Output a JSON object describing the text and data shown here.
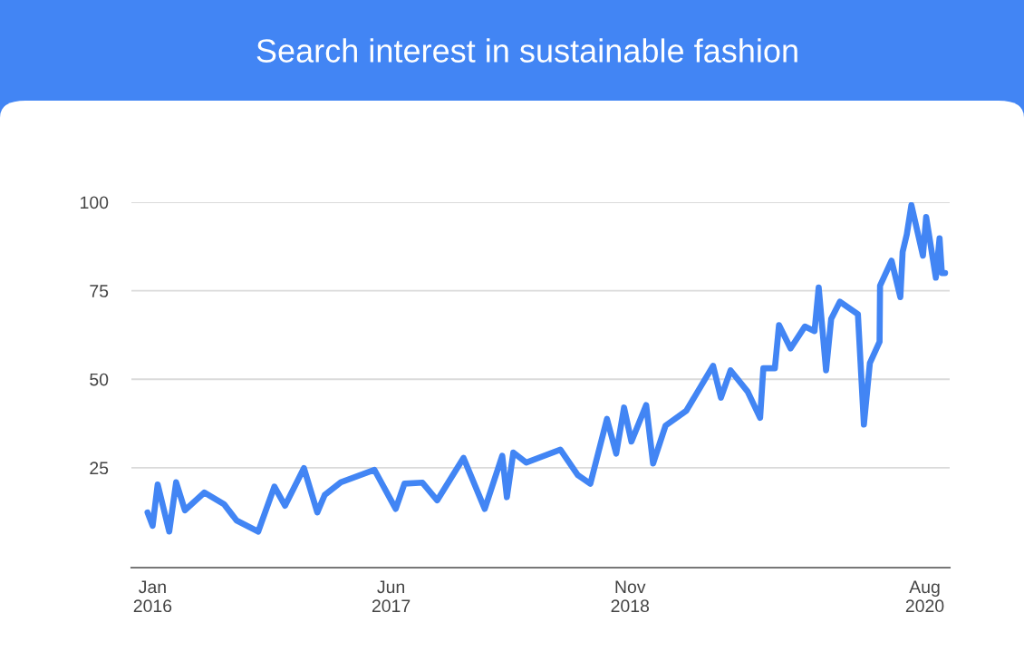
{
  "chart_data": {
    "type": "line",
    "title": "Search interest in sustainable fashion",
    "x": [
      "2015-12-21",
      "2016-01-01",
      "2016-01-12",
      "2016-02-06",
      "2016-02-21",
      "2016-03-11",
      "2016-04-22",
      "2016-06-04",
      "2016-07-01",
      "2016-08-17",
      "2016-09-21",
      "2016-10-14",
      "2016-11-24",
      "2016-12-23",
      "2017-01-08",
      "2017-02-12",
      "2017-04-26",
      "2017-06-11",
      "2017-06-30",
      "2017-08-08",
      "2017-09-09",
      "2017-11-05",
      "2017-12-21",
      "2018-01-28",
      "2018-02-07",
      "2018-02-21",
      "2018-03-21",
      "2018-06-03",
      "2018-07-11",
      "2018-08-07",
      "2018-09-12",
      "2018-10-02",
      "2018-10-19",
      "2018-11-04",
      "2018-12-06",
      "2018-12-21",
      "2019-01-17",
      "2019-03-03",
      "2019-04-30",
      "2019-05-17",
      "2019-06-07",
      "2019-07-14",
      "2019-08-10",
      "2019-08-17",
      "2019-09-11",
      "2019-09-20",
      "2019-10-15",
      "2019-11-15",
      "2019-12-06",
      "2019-12-15",
      "2019-12-31",
      "2020-01-11",
      "2020-01-30",
      "2020-03-09",
      "2020-03-22",
      "2020-04-04",
      "2020-04-25",
      "2020-04-26",
      "2020-05-21",
      "2020-06-09",
      "2020-06-14",
      "2020-06-23",
      "2020-07-03",
      "2020-07-28",
      "2020-08-04",
      "2020-08-25",
      "2020-09-02",
      "2020-09-07",
      "2020-09-14"
    ],
    "series": [
      {
        "color": "#4285f4",
        "values": [
          12.4,
          8.6,
          20.3,
          7.0,
          20.9,
          13.0,
          18.0,
          14.7,
          10.1,
          7.0,
          19.7,
          14.3,
          24.9,
          12.4,
          17.3,
          20.9,
          24.4,
          13.4,
          20.5,
          20.8,
          15.8,
          27.8,
          13.4,
          28.4,
          16.7,
          29.3,
          26.5,
          30.1,
          22.9,
          20.5,
          38.8,
          29.0,
          42.0,
          32.4,
          42.7,
          26.2,
          36.9,
          41.1,
          53.8,
          44.8,
          52.5,
          46.5,
          39.1,
          53.1,
          53.1,
          65.3,
          58.7,
          64.9,
          63.6,
          75.9,
          52.5,
          67.0,
          71.9,
          68.4,
          37.2,
          54.6,
          60.6,
          76.4,
          83.5,
          73.2,
          86.0,
          90.9,
          99.2,
          84.9,
          95.8,
          78.7,
          89.8,
          80.0,
          80.0
        ]
      }
    ],
    "xlim": [
      "2015-11-16",
      "2020-09-24"
    ],
    "xticks": [
      {
        "value": "2016-01-01",
        "label": "Jan\n2016"
      },
      {
        "value": "2017-06-01",
        "label": "Jun\n2017"
      },
      {
        "value": "2018-11-01",
        "label": "Nov\n2018"
      },
      {
        "value": "2020-08-01",
        "label": "Aug\n2020"
      }
    ],
    "ylim": [
      -3.2,
      100
    ],
    "yticks": [
      25,
      50,
      75,
      100
    ],
    "grid": "y",
    "marker": "none",
    "line_style": "solid",
    "legend": false
  }
}
